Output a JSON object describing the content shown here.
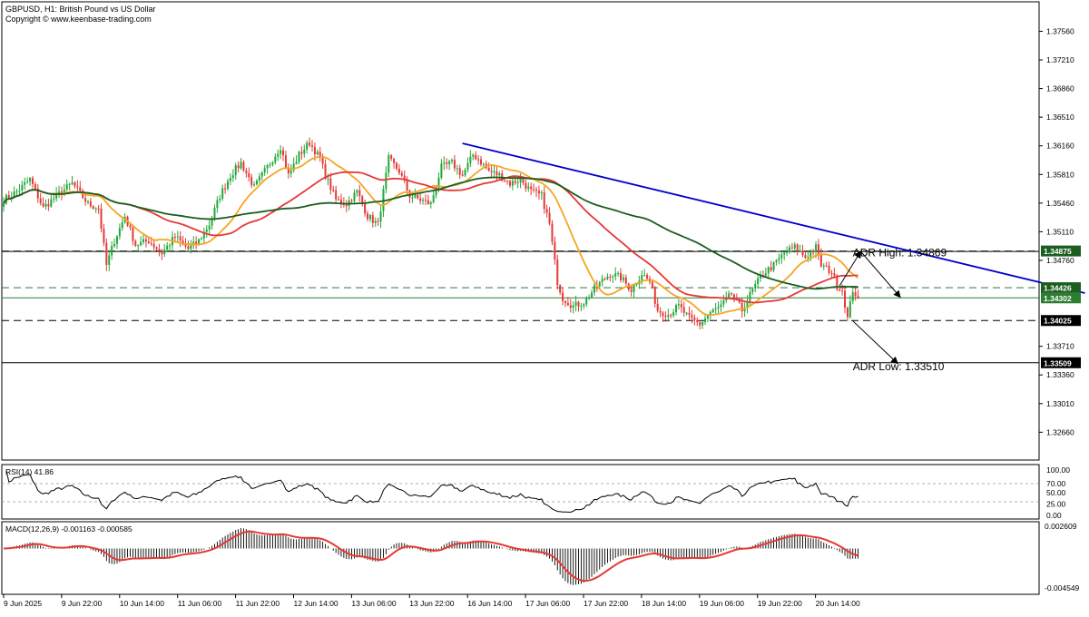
{
  "header": {
    "symbol_line": "GBPUSD, H1:  British Pound vs US Dollar",
    "copyright": "Copyright © www.keenbase-trading.com"
  },
  "chart_data": [
    {
      "type": "candlestick",
      "name": "price",
      "ylim": [
        1.3232,
        1.3792
      ],
      "y_ticks": [
        1.3756,
        1.3721,
        1.3686,
        1.3651,
        1.3616,
        1.3581,
        1.3546,
        1.3511,
        1.3476,
        1.3371,
        1.3336,
        1.3301,
        1.3266
      ],
      "x_tick_labels": [
        "9 Jun 2025",
        "9 Jun 22:00",
        "10 Jun 14:00",
        "11 Jun 06:00",
        "11 Jun 22:00",
        "12 Jun 14:00",
        "13 Jun 06:00",
        "13 Jun 22:00",
        "16 Jun 14:00",
        "17 Jun 06:00",
        "17 Jun 22:00",
        "18 Jun 14:00",
        "19 Jun 06:00",
        "19 Jun 22:00",
        "20 Jun 14:00"
      ],
      "close_anchors": [
        [
          0,
          1.355
        ],
        [
          5,
          1.356
        ],
        [
          10,
          1.3575
        ],
        [
          15,
          1.354
        ],
        [
          20,
          1.3555
        ],
        [
          26,
          1.357
        ],
        [
          32,
          1.3545
        ],
        [
          36,
          1.354
        ],
        [
          39,
          1.347
        ],
        [
          42,
          1.35
        ],
        [
          46,
          1.353
        ],
        [
          50,
          1.3495
        ],
        [
          55,
          1.35
        ],
        [
          60,
          1.3485
        ],
        [
          65,
          1.3505
        ],
        [
          70,
          1.349
        ],
        [
          74,
          1.35
        ],
        [
          78,
          1.352
        ],
        [
          82,
          1.3555
        ],
        [
          86,
          1.358
        ],
        [
          90,
          1.3595
        ],
        [
          95,
          1.3565
        ],
        [
          100,
          1.359
        ],
        [
          105,
          1.3615
        ],
        [
          108,
          1.358
        ],
        [
          112,
          1.3605
        ],
        [
          116,
          1.362
        ],
        [
          120,
          1.36
        ],
        [
          122,
          1.358
        ],
        [
          126,
          1.355
        ],
        [
          130,
          1.3545
        ],
        [
          134,
          1.356
        ],
        [
          138,
          1.353
        ],
        [
          142,
          1.352
        ],
        [
          146,
          1.36
        ],
        [
          150,
          1.3585
        ],
        [
          154,
          1.3555
        ],
        [
          158,
          1.355
        ],
        [
          162,
          1.3545
        ],
        [
          166,
          1.359
        ],
        [
          170,
          1.3595
        ],
        [
          174,
          1.358
        ],
        [
          178,
          1.3605
        ],
        [
          180,
          1.36
        ],
        [
          184,
          1.3585
        ],
        [
          188,
          1.358
        ],
        [
          192,
          1.357
        ],
        [
          196,
          1.3575
        ],
        [
          200,
          1.356
        ],
        [
          204,
          1.3555
        ],
        [
          207,
          1.352
        ],
        [
          210,
          1.345
        ],
        [
          212,
          1.343
        ],
        [
          216,
          1.342
        ],
        [
          220,
          1.3425
        ],
        [
          225,
          1.3445
        ],
        [
          230,
          1.346
        ],
        [
          234,
          1.3455
        ],
        [
          238,
          1.344
        ],
        [
          242,
          1.346
        ],
        [
          245,
          1.345
        ],
        [
          248,
          1.3415
        ],
        [
          252,
          1.341
        ],
        [
          256,
          1.342
        ],
        [
          260,
          1.3405
        ],
        [
          264,
          1.3398
        ],
        [
          268,
          1.3412
        ],
        [
          272,
          1.342
        ],
        [
          276,
          1.3435
        ],
        [
          280,
          1.3415
        ],
        [
          284,
          1.344
        ],
        [
          288,
          1.346
        ],
        [
          292,
          1.347
        ],
        [
          296,
          1.3485
        ],
        [
          300,
          1.3492
        ],
        [
          304,
          1.348
        ],
        [
          308,
          1.3492
        ],
        [
          310,
          1.347
        ],
        [
          314,
          1.3462
        ],
        [
          316,
          1.3445
        ],
        [
          318,
          1.344
        ],
        [
          320,
          1.3405
        ],
        [
          322,
          1.344
        ],
        [
          324,
          1.343
        ]
      ],
      "moving_averages": [
        {
          "color": "#f5a623",
          "period": 20
        },
        {
          "color": "#e53935",
          "period": 50
        },
        {
          "color": "#1b5e20",
          "period": 100
        }
      ],
      "levels": [
        {
          "value": 1.34875,
          "label": "1.34875",
          "style": "dash",
          "color": "#1b5e20",
          "label_bg": "#1b5e20",
          "label_fg": "#ffffff"
        },
        {
          "value": 1.34869,
          "style": "solid",
          "color": "#000000",
          "label_bg": "",
          "label_fg": ""
        },
        {
          "value": 1.34426,
          "label": "1.34426",
          "style": "dash",
          "color": "#1b5e20",
          "label_bg": "#1b5e20",
          "label_fg": "#ffffff"
        },
        {
          "value": 1.34302,
          "label": "1.34302",
          "style": "solid",
          "color": "#2e7d32",
          "label_bg": "#2e7d32",
          "label_fg": "#ffffff"
        },
        {
          "value": 1.34025,
          "label": "1.34025",
          "style": "dash",
          "color": "#000000",
          "label_bg": "#000000",
          "label_fg": "#ffffff"
        },
        {
          "value": 1.33509,
          "label": "1.33509",
          "style": "solid",
          "color": "#000000",
          "label_bg": "#000000",
          "label_fg": "#ffffff"
        }
      ],
      "trendline": {
        "from": [
          174,
          1.3619
        ],
        "to": [
          410,
          1.3436
        ],
        "color": "#0000cc"
      },
      "annotations": [
        {
          "text": "ADR High: 1.34869",
          "anchor": [
            322,
            1.3481
          ]
        },
        {
          "text": "ADR Low: 1.33510",
          "anchor": [
            322,
            1.3342
          ]
        }
      ],
      "arrows": [
        {
          "from": [
            317,
            1.3445
          ],
          "to": [
            325,
            1.34869
          ]
        },
        {
          "from": [
            325,
            1.34869
          ],
          "to": [
            340,
            1.3431
          ]
        },
        {
          "from": [
            322,
            1.3402
          ],
          "to": [
            339,
            1.335
          ]
        }
      ]
    },
    {
      "type": "line",
      "name": "rsi",
      "title": "RSI(14) 41.86",
      "ylim": [
        0,
        100
      ],
      "y_ticks": [
        100,
        70,
        50,
        25,
        0
      ],
      "y_tick_labels": [
        "100.00",
        "70.00",
        "50.00",
        "25.00",
        "0.00"
      ],
      "levels": [
        70,
        30
      ],
      "last_value": 41.86
    },
    {
      "type": "bar",
      "name": "macd",
      "title": "MACD(12,26,9) -0.001163 -0.000585",
      "ylim": [
        -0.004549,
        0.002609
      ],
      "y_tick_labels": [
        "0.002609",
        "-0.004549"
      ],
      "macd": -0.001163,
      "signal": -0.000585
    }
  ]
}
